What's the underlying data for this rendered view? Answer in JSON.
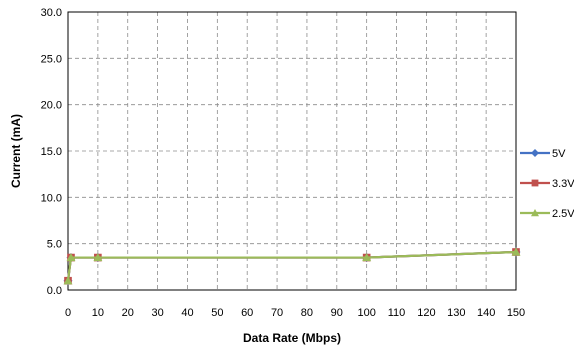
{
  "chart_data": {
    "type": "line",
    "xlabel": "Data Rate (Mbps)",
    "ylabel": "Current (mA)",
    "xlim": [
      0,
      150
    ],
    "ylim": [
      0,
      30
    ],
    "xticks": [
      "0",
      "10",
      "20",
      "30",
      "40",
      "50",
      "60",
      "70",
      "80",
      "90",
      "100",
      "110",
      "120",
      "130",
      "140",
      "150"
    ],
    "yticks": [
      "0.0",
      "5.0",
      "10.0",
      "15.0",
      "20.0",
      "25.0",
      "30.0"
    ],
    "grid": "dashed",
    "legend": "right",
    "series": [
      {
        "name": "5V",
        "color": "#4472C4",
        "marker": "diamond",
        "points": [
          [
            0,
            1.0
          ],
          [
            1,
            3.5
          ],
          [
            10,
            3.5
          ],
          [
            100,
            3.5
          ],
          [
            150,
            4.1
          ]
        ]
      },
      {
        "name": "3.3V",
        "color": "#C0504D",
        "marker": "square",
        "points": [
          [
            0,
            1.0
          ],
          [
            1,
            3.5
          ],
          [
            10,
            3.5
          ],
          [
            100,
            3.5
          ],
          [
            150,
            4.1
          ]
        ]
      },
      {
        "name": "2.5V",
        "color": "#9BBB59",
        "marker": "triangle",
        "points": [
          [
            0,
            1.0
          ],
          [
            1,
            3.5
          ],
          [
            10,
            3.5
          ],
          [
            100,
            3.5
          ],
          [
            150,
            4.1
          ]
        ]
      }
    ]
  }
}
